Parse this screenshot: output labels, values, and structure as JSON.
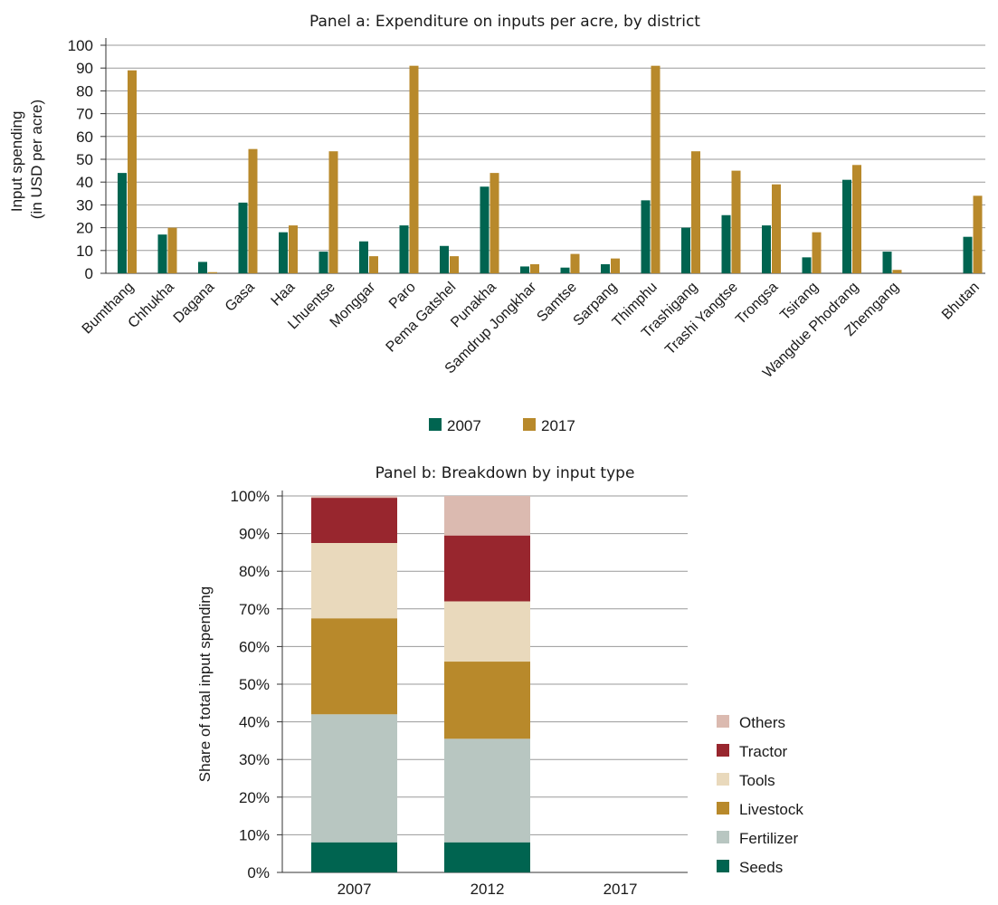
{
  "chart_data": [
    {
      "type": "bar",
      "title": "Panel a: Expenditure on inputs per acre, by district",
      "ylabel": [
        "Input spending",
        "(in USD per acre)"
      ],
      "ylim": [
        0,
        100
      ],
      "yticks": [
        0,
        10,
        20,
        30,
        40,
        50,
        60,
        70,
        80,
        90,
        100
      ],
      "grid": true,
      "legend_position": "bottom",
      "categories": [
        "Bumthang",
        "Chhukha",
        "Dagana",
        "Gasa",
        "Haa",
        "Lhuentse",
        "Monggar",
        "Paro",
        "Pema Gatshel",
        "Punakha",
        "Samdrup Jongkhar",
        "Samtse",
        "Sarpang",
        "Thimphu",
        "Trashigang",
        "Trashi Yangtse",
        "Trongsa",
        "Tsirang",
        "Wangdue Phodrang",
        "Zhemgang",
        "Bhutan"
      ],
      "series": [
        {
          "name": "2007",
          "color": "#006450",
          "values": [
            44,
            17,
            5,
            31,
            18,
            9.5,
            14,
            21,
            12,
            38,
            3,
            2.5,
            4,
            32,
            20,
            25.5,
            21,
            7,
            41,
            9.5,
            16
          ]
        },
        {
          "name": "2017",
          "color": "#b8892b",
          "values": [
            89,
            20,
            0.5,
            54.5,
            21,
            53.5,
            7.5,
            91,
            7.5,
            44,
            4,
            8.5,
            6.5,
            91,
            53.5,
            45,
            39,
            18,
            47.5,
            1.5,
            34
          ]
        }
      ]
    },
    {
      "type": "bar",
      "stacked": true,
      "title": "Panel b: Breakdown by input type",
      "ylabel": "Share of total input spending",
      "ylim": [
        0,
        100
      ],
      "yticks": [
        "0%",
        "10%",
        "20%",
        "30%",
        "40%",
        "50%",
        "60%",
        "70%",
        "80%",
        "90%",
        "100%"
      ],
      "grid": true,
      "legend_position": "right",
      "categories": [
        "2007",
        "2012",
        "2017"
      ],
      "series": [
        {
          "name": "Seeds",
          "color": "#006450",
          "values": [
            8,
            8,
            0
          ]
        },
        {
          "name": "Fertilizer",
          "color": "#b8c6c1",
          "values": [
            34,
            27.5,
            0
          ]
        },
        {
          "name": "Livestock",
          "color": "#b8892b",
          "values": [
            25.5,
            20.5,
            0
          ]
        },
        {
          "name": "Tools",
          "color": "#e9d9bc",
          "values": [
            20,
            16,
            0
          ]
        },
        {
          "name": "Tractor",
          "color": "#98262e",
          "values": [
            12,
            17.5,
            0
          ]
        },
        {
          "name": "Others",
          "color": "#dbbab0",
          "values": [
            0.5,
            10.5,
            0
          ]
        }
      ]
    }
  ]
}
